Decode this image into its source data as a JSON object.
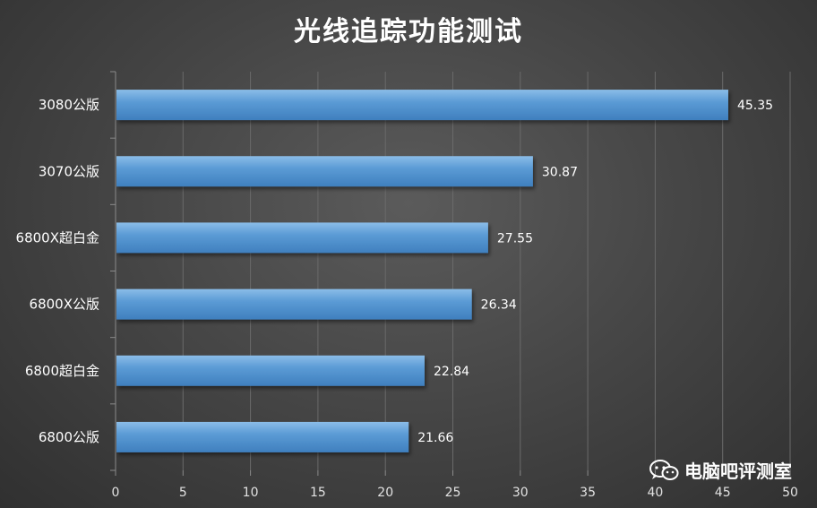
{
  "chart_data": {
    "type": "bar",
    "orientation": "horizontal",
    "title": "光线追踪功能测试",
    "categories": [
      "3080公版",
      "3070公版",
      "6800X超白金",
      "6800X公版",
      "6800超白金",
      "6800公版"
    ],
    "values": [
      45.35,
      30.87,
      27.55,
      26.34,
      22.84,
      21.66
    ],
    "value_labels": [
      "45.35",
      "30.87",
      "27.55",
      "26.34",
      "22.84",
      "21.66"
    ],
    "xlim": [
      0,
      50
    ],
    "xticks": [
      "0",
      "5",
      "10",
      "15",
      "20",
      "25",
      "30",
      "35",
      "40",
      "45",
      "50"
    ],
    "grid": true,
    "bar_color": "#5b9bd5"
  },
  "watermark": {
    "icon": "wechat-icon",
    "text": "电脑吧评测室"
  }
}
